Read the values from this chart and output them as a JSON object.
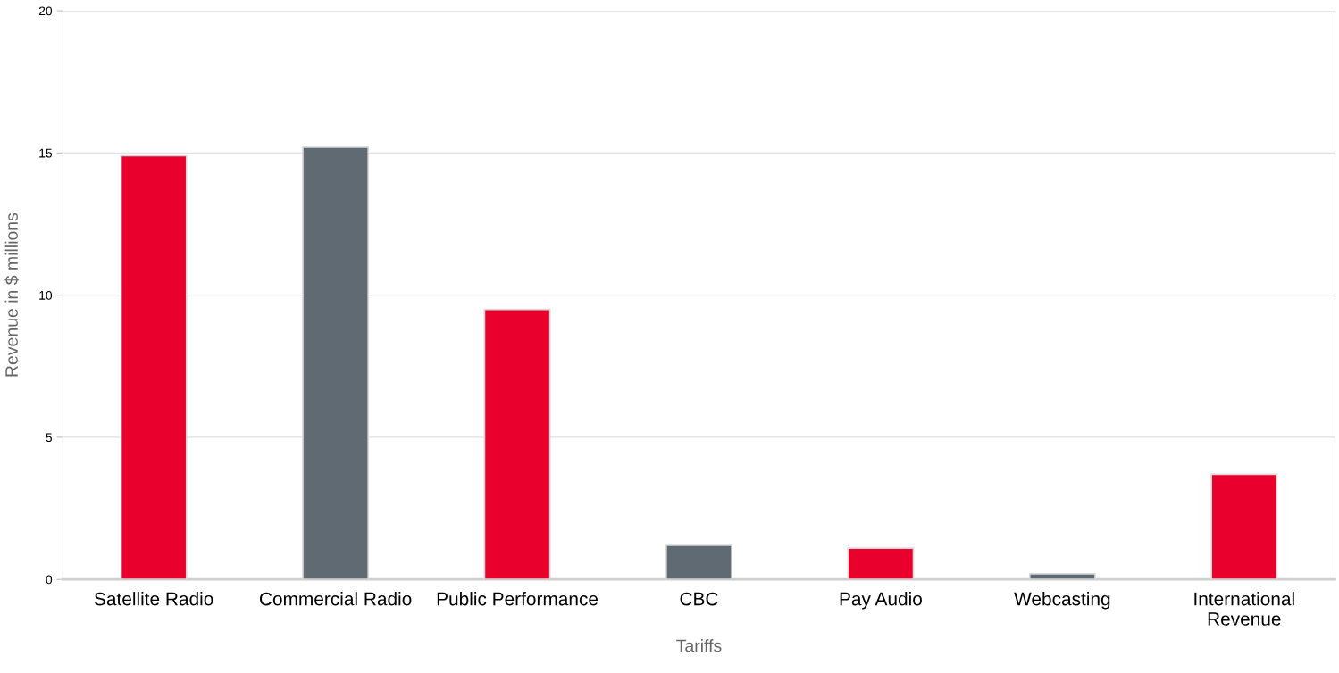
{
  "chart_data": {
    "type": "bar",
    "xlabel": "Tariffs",
    "ylabel": "Revenue in $ millions",
    "categories": [
      "Satellite Radio",
      "Commercial Radio",
      "Public Performance",
      "CBC",
      "Pay Audio",
      "Webcasting",
      "International\nRevenue"
    ],
    "values": [
      14.9,
      15.2,
      9.5,
      1.2,
      1.1,
      0.2,
      3.7
    ],
    "colors": [
      "#ea002c",
      "#5f6a73",
      "#ea002c",
      "#5f6a73",
      "#ea002c",
      "#5f6a73",
      "#ea002c"
    ],
    "ylim": [
      0,
      20
    ],
    "yticks": [
      0,
      5,
      10,
      15,
      20
    ],
    "grid": "y"
  }
}
